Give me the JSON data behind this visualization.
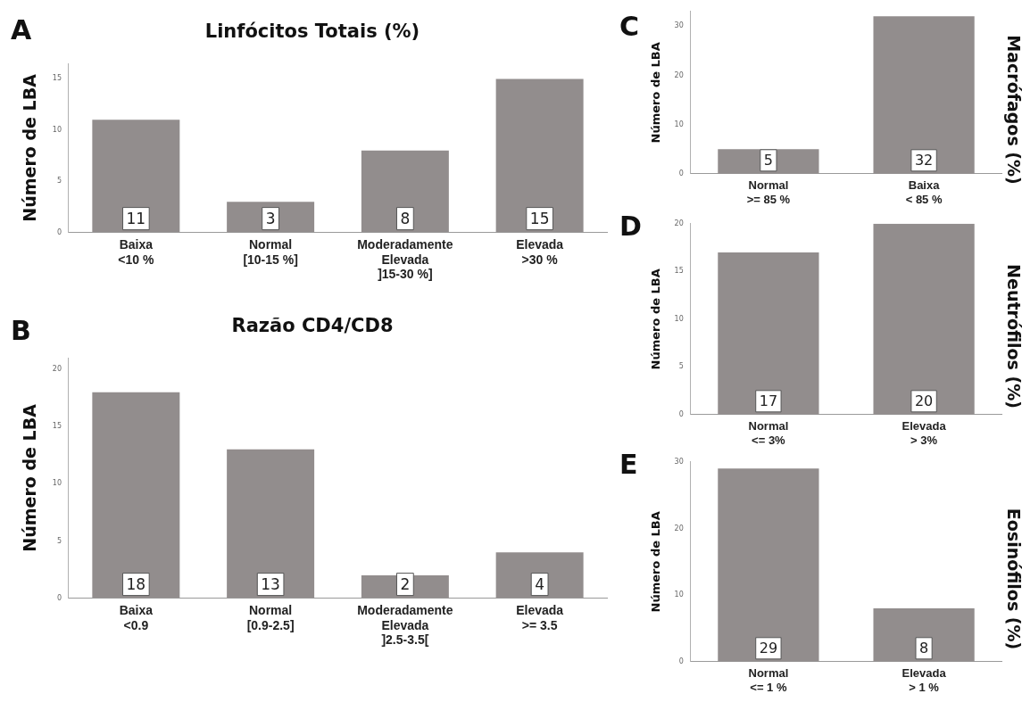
{
  "chart_data": [
    {
      "type": "bar",
      "title": "Linfócitos Totais (%)",
      "ylabel": "Número de LBA",
      "annotations": [
        "A"
      ],
      "categories": [
        "Baixa\n<10 %",
        "Normal\n[10-15 %]",
        "Moderadamente\nElevada\n]15-30 %]",
        "Elevada\n>30 %"
      ],
      "values": [
        11,
        3,
        8,
        15
      ],
      "color": "#928d8d",
      "ylim": [
        0,
        16.5
      ],
      "yticks": [
        0,
        5,
        10,
        15
      ],
      "data_labels": true
    },
    {
      "type": "bar",
      "title": "Razão CD4/CD8",
      "ylabel": "Número de LBA",
      "annotations": [
        "B"
      ],
      "categories": [
        "Baixa\n<0.9",
        "Normal\n[0.9-2.5]",
        "Moderadamente\nElevada\n]2.5-3.5[",
        "Elevada\n>= 3.5"
      ],
      "values": [
        18,
        13,
        2,
        4
      ],
      "color": "#928d8d",
      "ylim": [
        0,
        21
      ],
      "yticks": [
        0,
        5,
        10,
        15,
        20
      ],
      "data_labels": true
    },
    {
      "type": "bar",
      "title": "Macrófagos (%)",
      "ylabel": "Número de LBA",
      "annotations": [
        "C"
      ],
      "categories": [
        "Normal\n>= 85 %",
        "Baixa\n< 85 %"
      ],
      "values": [
        5,
        32
      ],
      "color": "#928d8d",
      "ylim": [
        0,
        33
      ],
      "yticks": [
        0,
        10,
        20,
        30
      ],
      "data_labels": true
    },
    {
      "type": "bar",
      "title": "Neutrófilos (%)",
      "ylabel": "Número de LBA",
      "annotations": [
        "D"
      ],
      "categories": [
        "Normal\n<= 3%",
        "Elevada\n> 3%"
      ],
      "values": [
        17,
        20
      ],
      "color": "#928d8d",
      "ylim": [
        0,
        20
      ],
      "yticks": [
        0,
        5,
        10,
        15,
        20
      ],
      "data_labels": true
    },
    {
      "type": "bar",
      "title": "Eosinófilos (%)",
      "ylabel": "Número de LBA",
      "annotations": [
        "E"
      ],
      "categories": [
        "Normal\n<= 1 %",
        "Elevada\n> 1 %"
      ],
      "values": [
        29,
        8
      ],
      "color": "#928d8d",
      "ylim": [
        0,
        30
      ],
      "yticks": [
        0,
        10,
        20,
        30
      ],
      "data_labels": true
    }
  ]
}
